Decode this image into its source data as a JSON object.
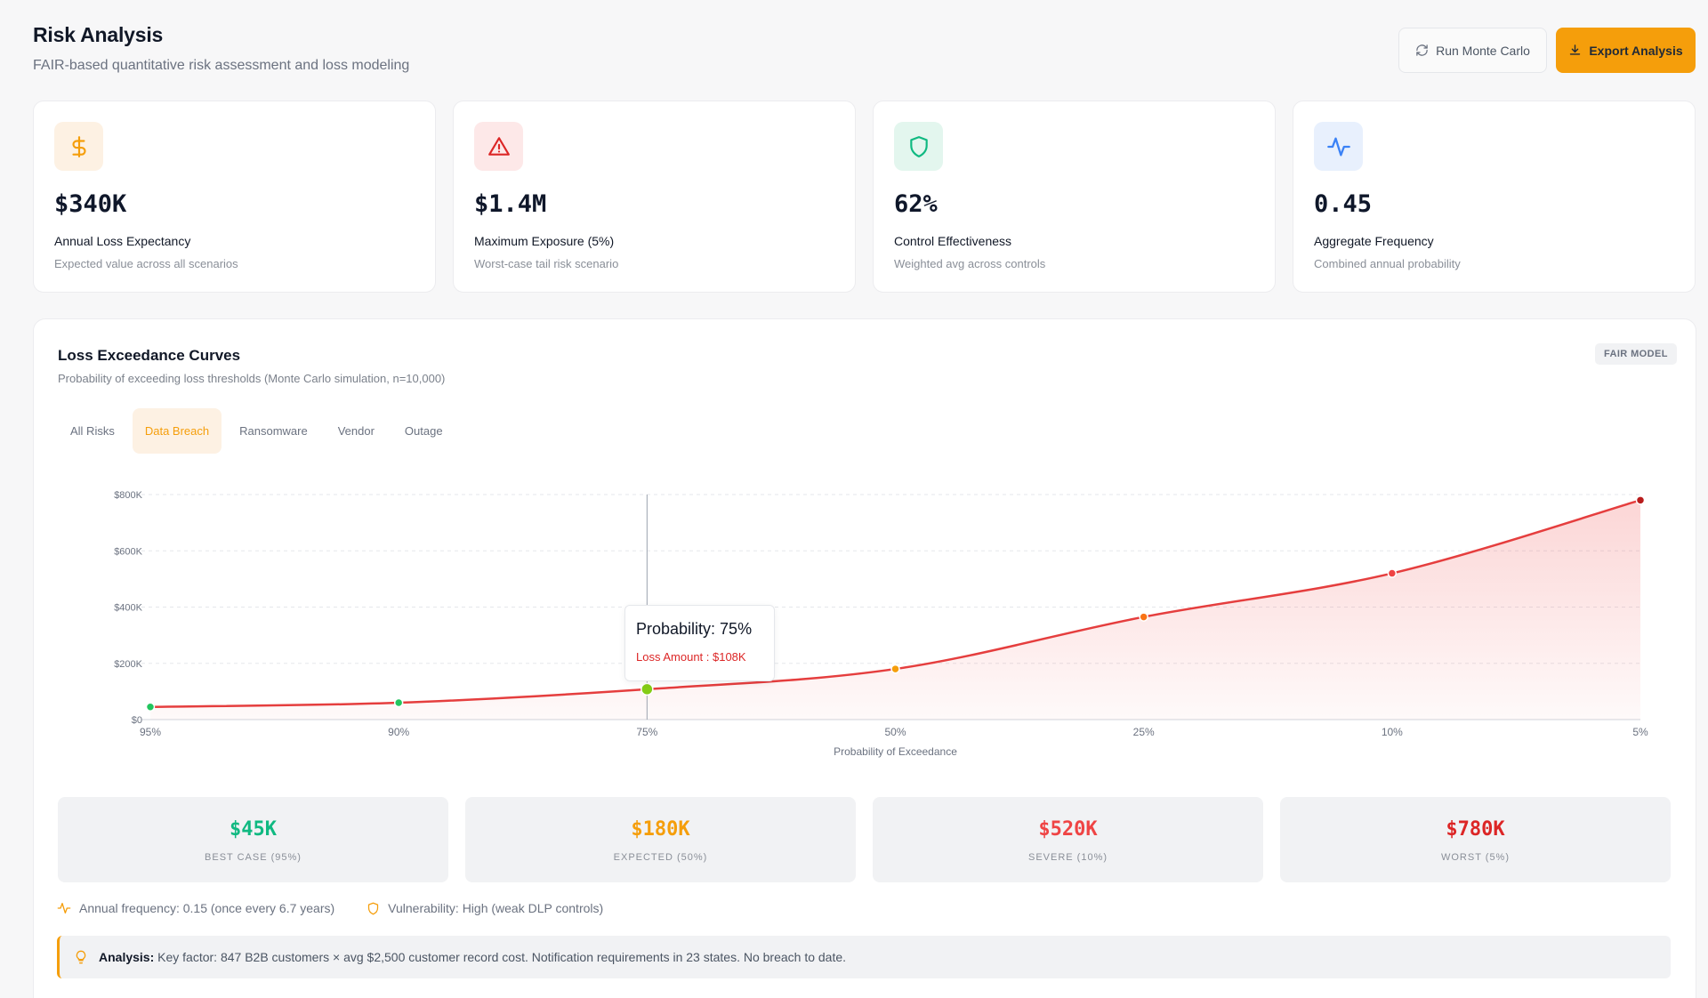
{
  "header": {
    "title": "Risk Analysis",
    "subtitle": "FAIR-based quantitative risk assessment and loss modeling",
    "run_button": "Run Monte Carlo",
    "export_button": "Export Analysis"
  },
  "kpis": [
    {
      "icon": "dollar-icon",
      "value": "$340K",
      "label": "Annual Loss Expectancy",
      "desc": "Expected value across all scenarios",
      "color": "#f59e0b",
      "bg": "#fdf1e3"
    },
    {
      "icon": "warning-icon",
      "value": "$1.4M",
      "label": "Maximum Exposure (5%)",
      "desc": "Worst-case tail risk scenario",
      "color": "#dc2626",
      "bg": "#fde8e8"
    },
    {
      "icon": "shield-icon",
      "value": "62%",
      "label": "Control Effectiveness",
      "desc": "Weighted avg across controls",
      "color": "#10b981",
      "bg": "#e3f6ee"
    },
    {
      "icon": "activity-icon",
      "value": "0.45",
      "label": "Aggregate Frequency",
      "desc": "Combined annual probability",
      "color": "#3b82f6",
      "bg": "#e8f0fd"
    }
  ],
  "panel": {
    "title": "Loss Exceedance Curves",
    "subtitle": "Probability of exceeding loss thresholds (Monte Carlo simulation, n=10,000)",
    "badge": "FAIR MODEL"
  },
  "tabs": [
    {
      "label": "All Risks",
      "active": false
    },
    {
      "label": "Data Breach",
      "active": true
    },
    {
      "label": "Ransomware",
      "active": false
    },
    {
      "label": "Vendor",
      "active": false
    },
    {
      "label": "Outage",
      "active": false
    }
  ],
  "chart_data": {
    "type": "area",
    "categories": [
      "95%",
      "90%",
      "75%",
      "50%",
      "25%",
      "10%",
      "5%"
    ],
    "series": [
      {
        "values": [
          45,
          60,
          108,
          180,
          365,
          520,
          780
        ]
      }
    ],
    "point_colors": [
      "#22c55e",
      "#22c55e",
      "#84cc16",
      "#f59e0b",
      "#f97316",
      "#ef4444",
      "#b91c1c"
    ],
    "xlabel": "Probability of Exceedance",
    "ylabel": "",
    "yticks": [
      "$0",
      "$200K",
      "$400K",
      "$600K",
      "$800K"
    ],
    "ylim": [
      0,
      800
    ],
    "grid": true,
    "line_color": "#e53e3e",
    "hover_index": 2
  },
  "tooltip": {
    "title": "Probability: 75%",
    "value": "Loss Amount : $108K"
  },
  "summary": [
    {
      "value": "$45K",
      "label": "BEST CASE (95%)",
      "color": "#10b981"
    },
    {
      "value": "$180K",
      "label": "EXPECTED (50%)",
      "color": "#f59e0b"
    },
    {
      "value": "$520K",
      "label": "SEVERE (10%)",
      "color": "#ef4444"
    },
    {
      "value": "$780K",
      "label": "WORST (5%)",
      "color": "#dc2626"
    }
  ],
  "meta": {
    "frequency": "Annual frequency: 0.15 (once every 6.7 years)",
    "vulnerability": "Vulnerability: High (weak DLP controls)"
  },
  "analysis": {
    "label": "Analysis:",
    "text": "Key factor: 847 B2B customers × avg $2,500 customer record cost. Notification requirements in 23 states. No breach to date."
  }
}
